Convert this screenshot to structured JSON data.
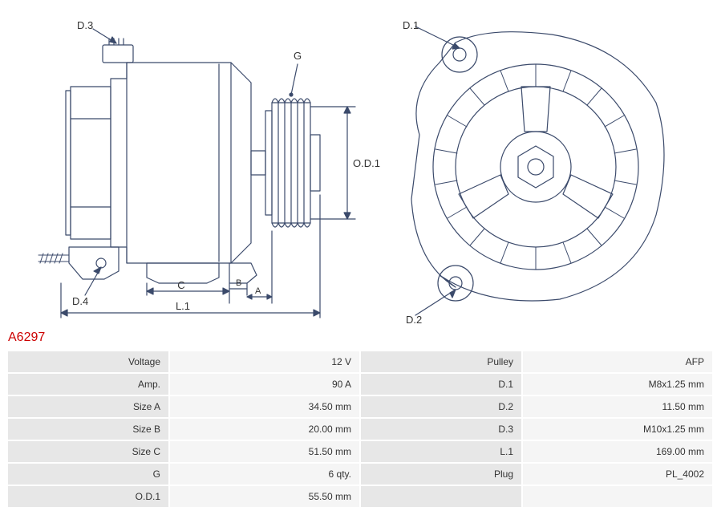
{
  "part_number": "A6297",
  "diagram": {
    "callouts": {
      "d1": "D.1",
      "d2": "D.2",
      "d3": "D.3",
      "d4": "D.4",
      "g": "G",
      "od1": "O.D.1",
      "c": "C",
      "a": "A",
      "b": "B",
      "l1": "L.1"
    },
    "stroke": "#3b4a6b",
    "stroke_width": 1.2,
    "label_font_size": 13
  },
  "specs": {
    "left": [
      {
        "label": "Voltage",
        "value": "12 V"
      },
      {
        "label": "Amp.",
        "value": "90 A"
      },
      {
        "label": "Size A",
        "value": "34.50 mm"
      },
      {
        "label": "Size B",
        "value": "20.00 mm"
      },
      {
        "label": "Size C",
        "value": "51.50 mm"
      },
      {
        "label": "G",
        "value": "6 qty."
      },
      {
        "label": "O.D.1",
        "value": "55.50 mm"
      }
    ],
    "right": [
      {
        "label": "Pulley",
        "value": "AFP"
      },
      {
        "label": "D.1",
        "value": "M8x1.25 mm"
      },
      {
        "label": "D.2",
        "value": "11.50 mm"
      },
      {
        "label": "D.3",
        "value": "M10x1.25 mm"
      },
      {
        "label": "L.1",
        "value": "169.00 mm"
      },
      {
        "label": "Plug",
        "value": "PL_4002"
      },
      {
        "label": "",
        "value": ""
      }
    ]
  }
}
